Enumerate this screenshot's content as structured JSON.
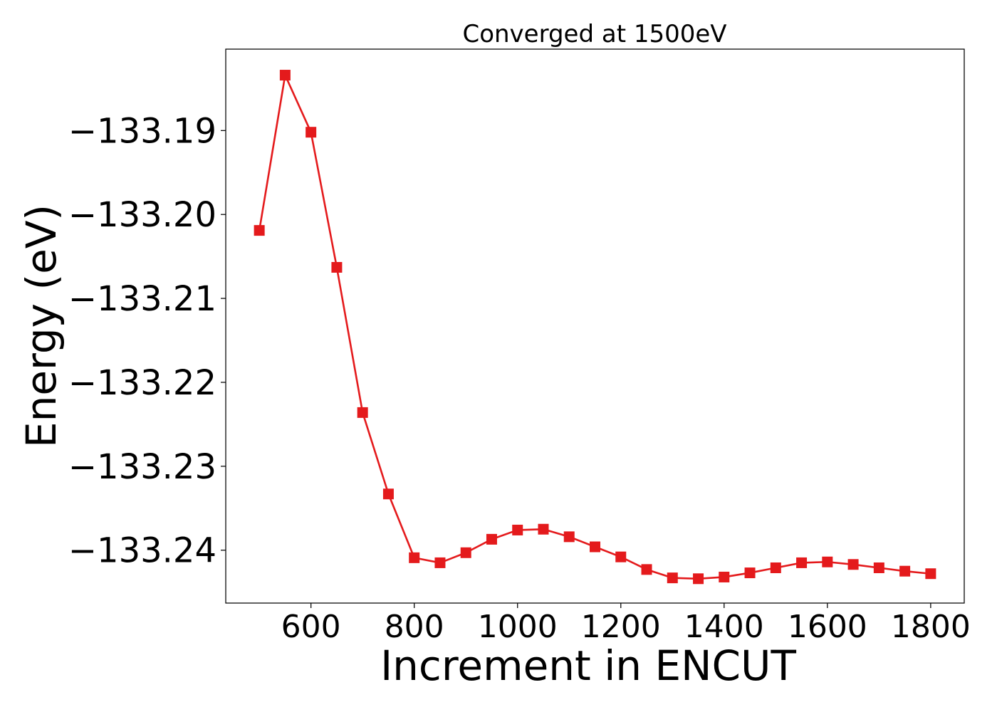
{
  "chart_data": {
    "type": "line",
    "title": "Converged at 1500eV",
    "xlabel": "Increment in ENCUT",
    "ylabel": "Energy (eV)",
    "xlim": [
      435,
      1865
    ],
    "ylim": [
      -133.2463,
      -133.1803
    ],
    "xticks": [
      600,
      800,
      1000,
      1200,
      1400,
      1600,
      1800
    ],
    "xtick_labels": [
      "600",
      "800",
      "1000",
      "1200",
      "1400",
      "1600",
      "1800"
    ],
    "yticks": [
      -133.19,
      -133.2,
      -133.21,
      -133.22,
      -133.23,
      -133.24
    ],
    "ytick_labels": [
      "−133.19",
      "−133.20",
      "−133.21",
      "−133.22",
      "−133.23",
      "−133.24"
    ],
    "grid": false,
    "legend": false,
    "color": "#e41a1c",
    "marker": "square",
    "series": [
      {
        "x": [
          500,
          550,
          600,
          650,
          700,
          750,
          800,
          850,
          900,
          950,
          1000,
          1050,
          1100,
          1150,
          1200,
          1250,
          1300,
          1350,
          1400,
          1450,
          1500,
          1550,
          1600,
          1650,
          1700,
          1750,
          1800
        ],
        "values": [
          -133.2019,
          -133.1834,
          -133.1902,
          -133.2063,
          -133.2236,
          -133.2333,
          -133.2409,
          -133.2415,
          -133.2403,
          -133.2387,
          -133.2376,
          -133.2375,
          -133.2384,
          -133.2396,
          -133.2408,
          -133.2423,
          -133.2433,
          -133.2434,
          -133.2432,
          -133.2427,
          -133.2421,
          -133.2415,
          -133.2414,
          -133.2417,
          -133.2421,
          -133.2425,
          -133.2428
        ]
      }
    ]
  }
}
